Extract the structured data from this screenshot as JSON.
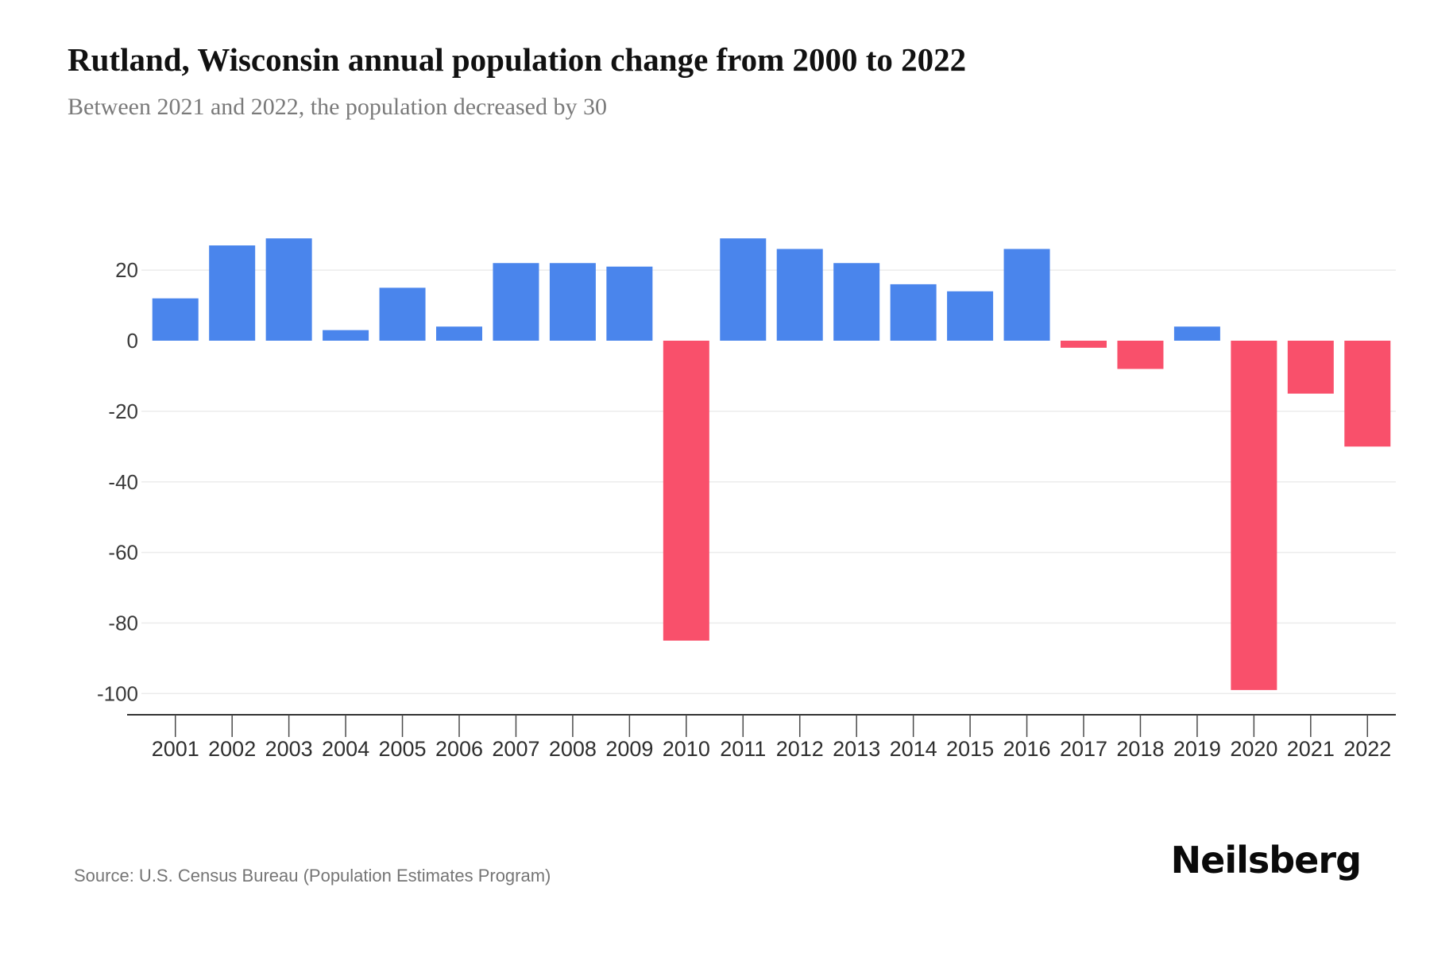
{
  "header": {
    "title": "Rutland, Wisconsin annual population change from 2000 to 2022",
    "subtitle": "Between 2021 and 2022, the population decreased by 30"
  },
  "chart_data": {
    "type": "bar",
    "title": "Rutland, Wisconsin annual population change from 2000 to 2022",
    "categories": [
      "2001",
      "2002",
      "2003",
      "2004",
      "2005",
      "2006",
      "2007",
      "2008",
      "2009",
      "2010",
      "2011",
      "2012",
      "2013",
      "2014",
      "2015",
      "2016",
      "2017",
      "2018",
      "2019",
      "2020",
      "2021",
      "2022"
    ],
    "values": [
      12,
      27,
      29,
      3,
      15,
      4,
      22,
      22,
      21,
      -85,
      29,
      26,
      22,
      16,
      14,
      26,
      -2,
      -8,
      4,
      -99,
      -15,
      -30
    ],
    "yticks": [
      20,
      0,
      -20,
      -40,
      -60,
      -80,
      -100
    ],
    "ylim": [
      -100,
      20
    ],
    "grid": true,
    "legend": false,
    "colors": {
      "positive_bar": "#4a85ec",
      "negative_bar": "#f9506b",
      "gridline": "#ececec",
      "axis_line": "#333333",
      "tick": "#4a4a4a",
      "axis_label": "#3a3a3a"
    }
  },
  "footer": {
    "source": "Source: U.S. Census Bureau (Population Estimates Program)",
    "brand": "Neilsberg"
  }
}
